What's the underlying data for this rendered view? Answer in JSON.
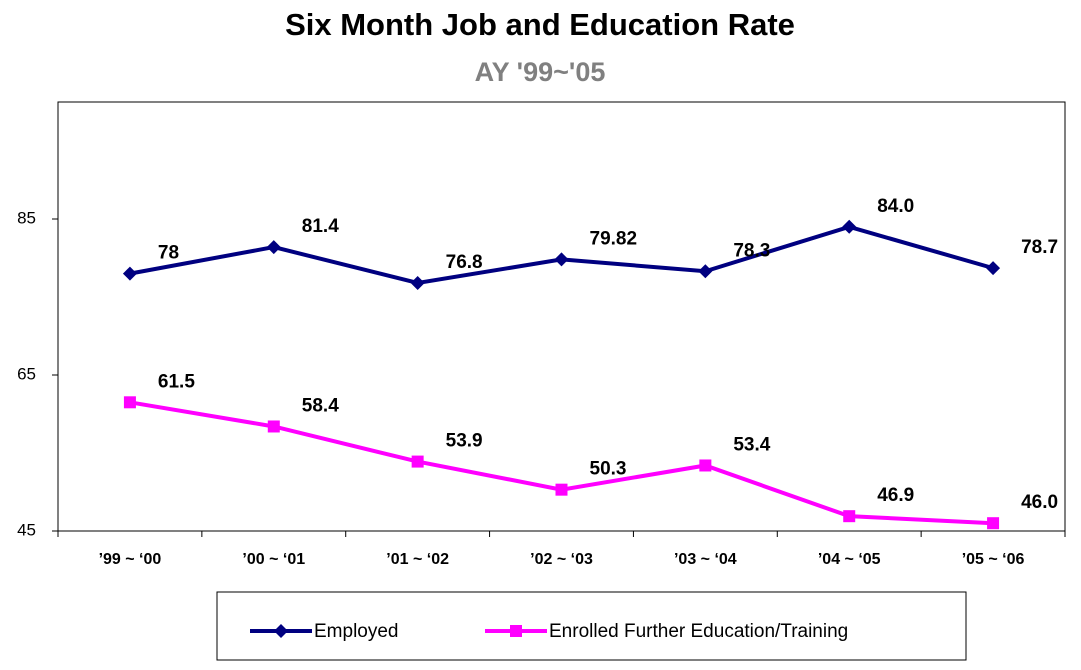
{
  "chart_data": {
    "type": "line",
    "title": "Six Month Job and Education Rate",
    "subtitle": "AY '99~'05",
    "categories": [
      "’99 ~ ‘00",
      "’00 ~ ‘01",
      "’01 ~ ‘02",
      "’02 ~ ‘03",
      "’03 ~ ‘04",
      "’04 ~ ‘05",
      "’05 ~ ‘06"
    ],
    "series": [
      {
        "name": "Employed",
        "color": "#000080",
        "marker": "diamond",
        "values": [
          78,
          81.4,
          76.8,
          79.82,
          78.3,
          84.0,
          78.7
        ],
        "value_labels": [
          "78",
          "81.4",
          "76.8",
          "79.82",
          "78.3",
          "84.0",
          "78.7"
        ]
      },
      {
        "name": "Enrolled Further Education/Training",
        "color": "#ff00ff",
        "marker": "square",
        "values": [
          61.5,
          58.4,
          53.9,
          50.3,
          53.4,
          46.9,
          46.0
        ],
        "value_labels": [
          "61.5",
          "58.4",
          "53.9",
          "50.3",
          "53.4",
          "46.9",
          "46.0"
        ]
      }
    ],
    "ylim": [
      45,
      100
    ],
    "yticks": [
      45,
      65,
      85
    ],
    "grid": false,
    "legend": "bottom"
  }
}
